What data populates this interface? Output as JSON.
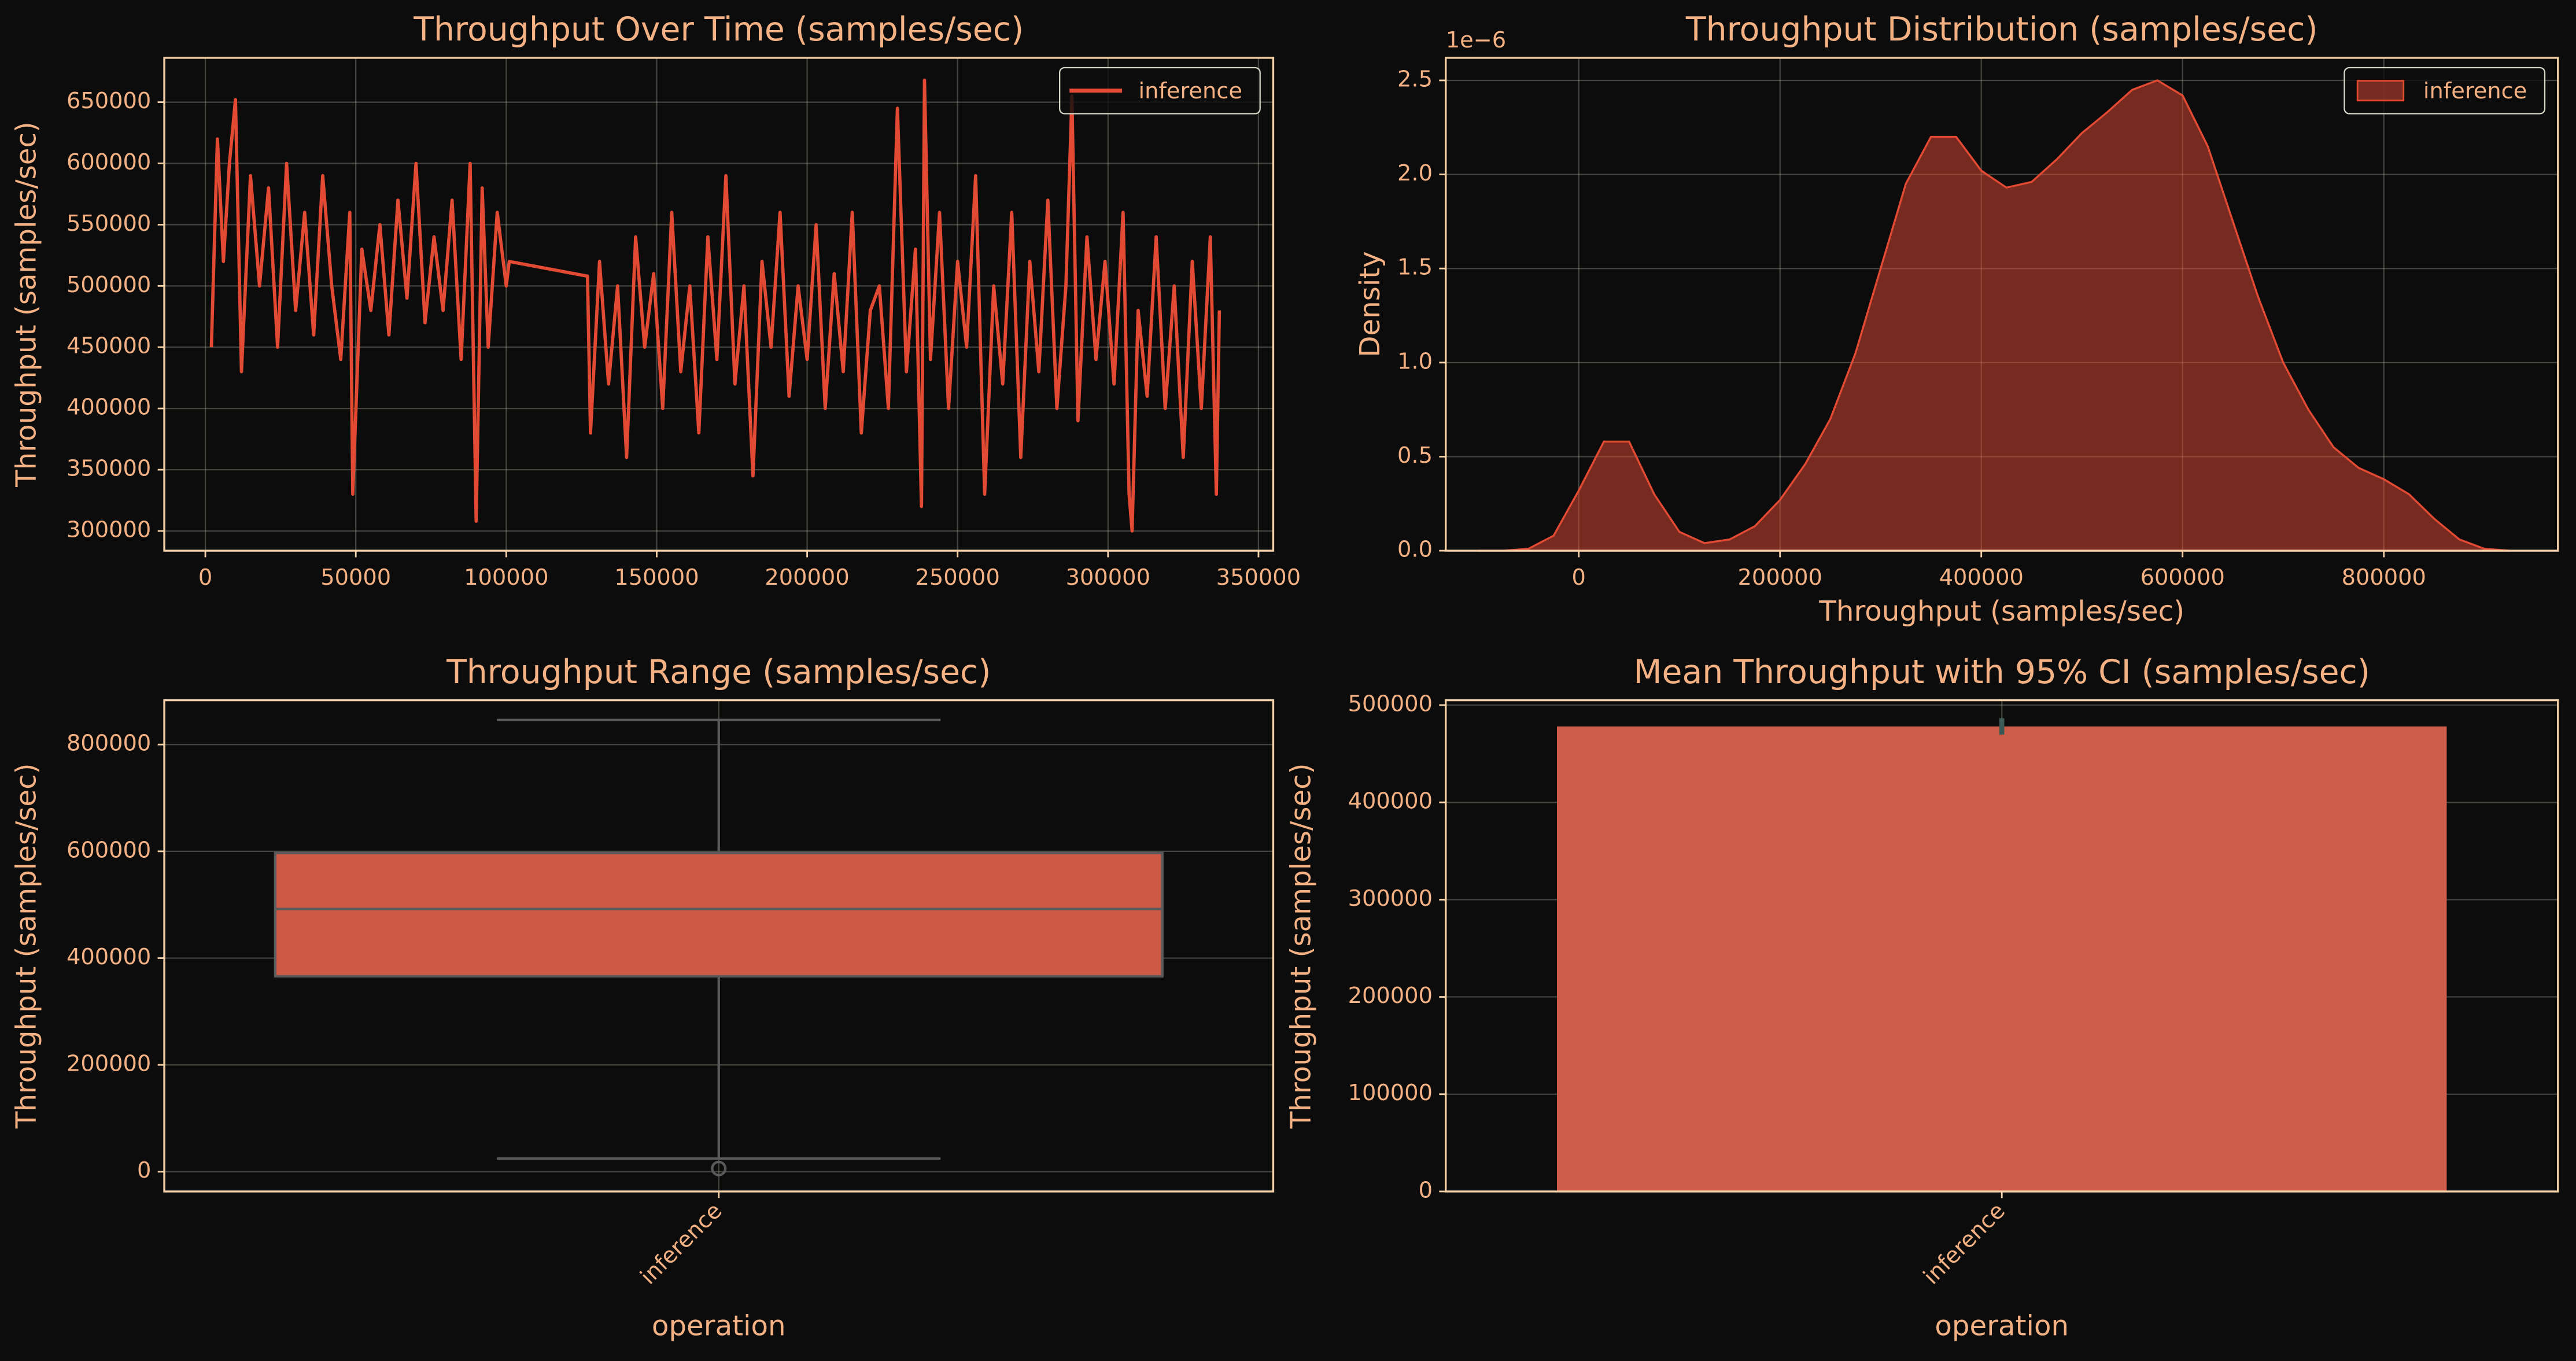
{
  "chart_data": [
    {
      "type": "line",
      "title": "Throughput Over Time (samples/sec)",
      "ylabel": "Throughput (samples/sec)",
      "x": [
        2000,
        4000,
        6000,
        8000,
        10000,
        12000,
        15000,
        18000,
        21000,
        24000,
        27000,
        30000,
        33000,
        36000,
        39000,
        42000,
        45000,
        48000,
        49000,
        52000,
        55000,
        58000,
        61000,
        64000,
        67000,
        70000,
        73000,
        76000,
        79000,
        82000,
        85000,
        88000,
        90000,
        92000,
        94000,
        97000,
        100000,
        101000,
        127000,
        128000,
        131000,
        134000,
        137000,
        140000,
        143000,
        146000,
        149000,
        152000,
        155000,
        158000,
        161000,
        164000,
        167000,
        170000,
        173000,
        176000,
        179000,
        182000,
        185000,
        188000,
        191000,
        194000,
        197000,
        200000,
        203000,
        206000,
        209000,
        212000,
        215000,
        218000,
        221000,
        224000,
        227000,
        230000,
        233000,
        236000,
        238000,
        239000,
        241000,
        244000,
        247000,
        250000,
        253000,
        256000,
        259000,
        262000,
        265000,
        268000,
        271000,
        274000,
        277000,
        280000,
        283000,
        286000,
        288000,
        290000,
        293000,
        296000,
        299000,
        302000,
        305000,
        307000,
        308000,
        310000,
        313000,
        316000,
        319000,
        322000,
        325000,
        328000,
        331000,
        334000,
        336000,
        337000
      ],
      "series": [
        {
          "name": "inference",
          "color": "#e24a33",
          "values": [
            450000,
            620000,
            520000,
            600000,
            652000,
            430000,
            590000,
            500000,
            580000,
            450000,
            600000,
            480000,
            560000,
            460000,
            590000,
            500000,
            440000,
            560000,
            330000,
            530000,
            480000,
            550000,
            460000,
            570000,
            490000,
            600000,
            470000,
            540000,
            480000,
            570000,
            440000,
            600000,
            308000,
            580000,
            450000,
            560000,
            500000,
            520000,
            508000,
            380000,
            520000,
            420000,
            500000,
            360000,
            540000,
            450000,
            510000,
            400000,
            560000,
            430000,
            500000,
            380000,
            540000,
            440000,
            590000,
            420000,
            500000,
            345000,
            520000,
            450000,
            560000,
            410000,
            500000,
            440000,
            550000,
            400000,
            510000,
            430000,
            560000,
            380000,
            480000,
            500000,
            400000,
            645000,
            430000,
            530000,
            320000,
            668000,
            440000,
            560000,
            400000,
            520000,
            450000,
            590000,
            330000,
            500000,
            420000,
            560000,
            360000,
            520000,
            430000,
            570000,
            400000,
            500000,
            655000,
            390000,
            540000,
            440000,
            520000,
            420000,
            560000,
            330000,
            300000,
            480000,
            410000,
            540000,
            400000,
            500000,
            360000,
            520000,
            400000,
            540000,
            330000,
            480000
          ]
        }
      ],
      "xlim": [
        -13650,
        354900
      ],
      "ylim": [
        283900,
        686200
      ],
      "xticks": [
        0,
        50000,
        100000,
        150000,
        200000,
        250000,
        300000,
        350000
      ],
      "yticks": [
        300000,
        350000,
        400000,
        450000,
        500000,
        550000,
        600000,
        650000
      ],
      "grid": true,
      "legend": "upper right"
    },
    {
      "type": "area",
      "title": "Throughput Distribution (samples/sec)",
      "xlabel": "Throughput (samples/sec)",
      "ylabel": "Density",
      "offset_label": "1e−6",
      "x": [
        -100000,
        -75000,
        -50000,
        -25000,
        0,
        25000,
        50000,
        75000,
        100000,
        125000,
        150000,
        175000,
        200000,
        225000,
        250000,
        275000,
        300000,
        325000,
        350000,
        375000,
        400000,
        425000,
        450000,
        475000,
        500000,
        525000,
        550000,
        575000,
        600000,
        625000,
        650000,
        675000,
        700000,
        725000,
        750000,
        775000,
        800000,
        825000,
        850000,
        875000,
        900000,
        925000
      ],
      "series": [
        {
          "name": "inference",
          "color": "#e24a33",
          "values": [
            0.0,
            0.0,
            0.01,
            0.08,
            0.32,
            0.58,
            0.58,
            0.3,
            0.1,
            0.04,
            0.06,
            0.13,
            0.27,
            0.46,
            0.7,
            1.05,
            1.5,
            1.95,
            2.2,
            2.2,
            2.02,
            1.93,
            1.96,
            2.08,
            2.22,
            2.33,
            2.45,
            2.5,
            2.42,
            2.15,
            1.75,
            1.35,
            1.0,
            0.75,
            0.55,
            0.44,
            0.38,
            0.3,
            0.17,
            0.06,
            0.01,
            0.0
          ]
        }
      ],
      "xlim": [
        -132200,
        973000
      ],
      "ylim": [
        0,
        2.62
      ],
      "xticks": [
        0,
        200000,
        400000,
        600000,
        800000
      ],
      "yticks": [
        {
          "value": 0,
          "label": "0.0"
        },
        0.5,
        {
          "value": 1,
          "label": "1.0"
        },
        1.5,
        {
          "value": 2,
          "label": "2.0"
        },
        2.5
      ],
      "grid": true,
      "legend": "upper right"
    },
    {
      "type": "box",
      "title": "Throughput Range (samples/sec)",
      "xlabel": "operation",
      "ylabel": "Throughput (samples/sec)",
      "categories": [
        "inference"
      ],
      "color": "#cc5a47",
      "whislo": [
        24600
      ],
      "q1": [
        366000
      ],
      "median": [
        492000
      ],
      "q3": [
        597000
      ],
      "whishi": [
        846000
      ],
      "fliers": [
        [
          6000
        ]
      ],
      "ylim": [
        -37000,
        883000
      ],
      "yticks": [
        0,
        200000,
        400000,
        600000,
        800000
      ],
      "grid": true
    },
    {
      "type": "bar",
      "title": "Mean Throughput with 95% CI (samples/sec)",
      "xlabel": "operation",
      "ylabel": "Throughput (samples/sec)",
      "categories": [
        "inference"
      ],
      "color": "#cd5c4a",
      "values": [
        478000
      ],
      "ci_low": [
        469600
      ],
      "ci_high": [
        486500
      ],
      "ylim": [
        0,
        505000
      ],
      "yticks": [
        0,
        100000,
        200000,
        300000,
        400000,
        500000
      ],
      "grid": true
    }
  ]
}
